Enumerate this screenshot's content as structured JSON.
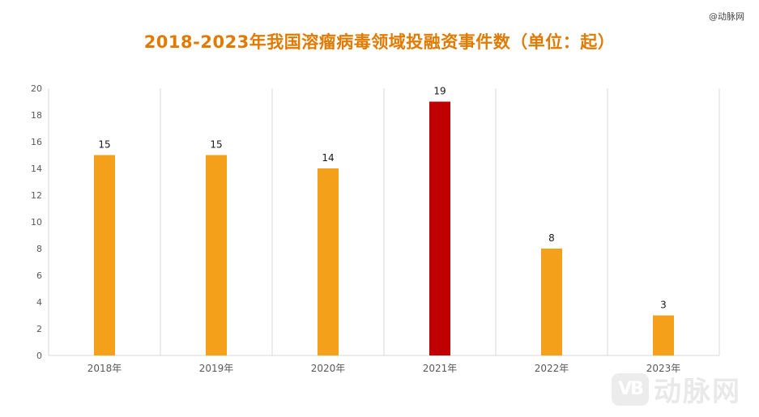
{
  "source_tag": "@动脉网",
  "watermark": {
    "logo": "VB",
    "text": "动脉网"
  },
  "chart_data": {
    "type": "bar",
    "title": "2018-2023年我国溶瘤病毒领域投融资事件数（单位：起）",
    "categories": [
      "2018年",
      "2019年",
      "2020年",
      "2021年",
      "2022年",
      "2023年"
    ],
    "values": [
      15,
      15,
      14,
      19,
      8,
      3
    ],
    "data_labels": [
      "15",
      "15",
      "14",
      "19",
      "8",
      "3"
    ],
    "colors": [
      "#F5A01A",
      "#F5A01A",
      "#F5A01A",
      "#C00000",
      "#F5A01A",
      "#F5A01A"
    ],
    "ylim": [
      0,
      20
    ],
    "yticks": [
      0,
      2,
      4,
      6,
      8,
      10,
      12,
      14,
      16,
      18,
      20
    ],
    "ytick_labels": [
      "0",
      "2",
      "4",
      "6",
      "8",
      "10",
      "12",
      "14",
      "16",
      "18",
      "20"
    ],
    "xlabel": "",
    "ylabel": "",
    "grid": "vertical category separators",
    "legend": "none"
  }
}
